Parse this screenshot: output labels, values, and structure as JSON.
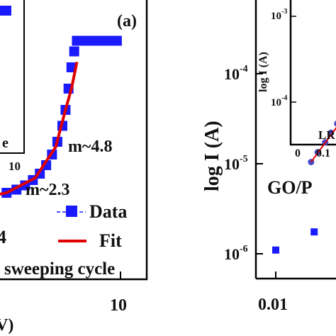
{
  "chart_data": [
    {
      "type": "scatter",
      "panel_label": "(a)",
      "xscale": "log",
      "yscale": "log",
      "x_tick_labels": [
        "10"
      ],
      "inset_x_tick_label": "10",
      "inset_text_fragment": "e",
      "legend": {
        "placement": "bottom-right",
        "entries": [
          "Data",
          "Fit"
        ]
      },
      "caption": "sweeping cycle",
      "annotations": [
        "m~4.8",
        "m~2.3",
        "4"
      ],
      "x_label_fragment": "V)",
      "series": [
        {
          "name": "Data",
          "marker": "square",
          "color": "#1a1aff",
          "x": [
            1.2,
            1.4,
            1.7,
            2.0,
            2.3,
            2.6,
            2.9,
            3.2,
            3.5,
            3.8,
            4.1,
            4.4,
            4.6,
            4.8,
            5.0,
            5.2,
            5.4,
            5.6,
            5.8,
            6.0,
            6.5,
            7.0,
            8.0,
            9.0,
            9.5
          ],
          "y_rel": [
            0.05,
            0.07,
            0.09,
            0.12,
            0.15,
            0.19,
            0.24,
            0.3,
            0.38,
            0.48,
            0.6,
            0.75,
            0.9,
            1.1,
            1.3,
            1.45,
            1.55,
            1.55,
            1.55,
            1.55,
            1.55,
            1.55,
            1.55,
            1.55,
            1.55
          ]
        },
        {
          "name": "Fit",
          "color": "#e00000",
          "x": [
            1.2,
            2.0,
            3.0,
            4.0,
            4.6,
            5.0,
            5.4
          ],
          "y_rel": [
            0.05,
            0.12,
            0.26,
            0.55,
            0.9,
            1.1,
            1.35
          ]
        }
      ]
    },
    {
      "type": "scatter",
      "xscale": "log",
      "yscale": "log",
      "ylabel": "log I (A)",
      "x_tick_labels": [
        "0.01"
      ],
      "y_tick_labels": [
        "10^-4",
        "10^-5",
        "10^-6"
      ],
      "ylim": [
        6e-07,
        0.0004
      ],
      "series_label": "GO/P",
      "series": [
        {
          "name": "",
          "marker": "square",
          "color": "#1a1aff",
          "x": [
            0.01,
            0.02
          ],
          "y": [
            1.1e-06,
            1.75e-06
          ]
        }
      ],
      "inset": {
        "ylabel": "log I (A)",
        "y_tick_labels": [
          "10^-3",
          "10^-4"
        ],
        "x_tick_labels": [
          "0.1"
        ],
        "text": "LR",
        "series": [
          {
            "name": "",
            "marker": "circle",
            "color": "#4a4ac8",
            "x": [
              0.07,
              0.09,
              0.12,
              0.15,
              0.19,
              0.24,
              0.3,
              0.38,
              0.48,
              0.6
            ],
            "y": [
              2e-05,
              2.6e-05,
              3.4e-05,
              4.4e-05,
              5.6e-05,
              7e-05,
              8.6e-05,
              0.000105,
              0.000128,
              0.000155
            ]
          }
        ]
      }
    }
  ]
}
